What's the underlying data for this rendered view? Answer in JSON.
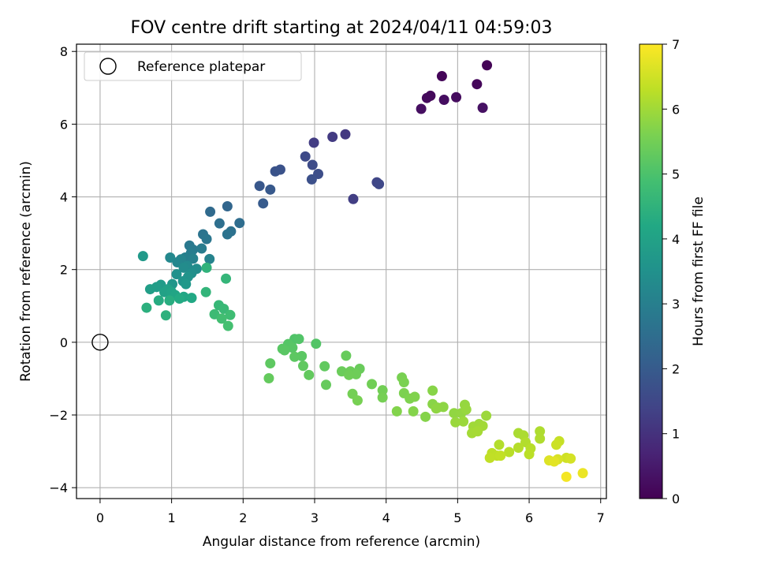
{
  "chart_data": {
    "type": "scatter",
    "title": "FOV centre drift starting at 2024/04/11 04:59:03",
    "xlabel": "Angular distance from reference (arcmin)",
    "ylabel": "Rotation from reference (arcmin)",
    "xlim": [
      -0.33,
      7.08
    ],
    "ylim": [
      -4.3,
      8.2
    ],
    "xticks": [
      0,
      1,
      2,
      3,
      4,
      5,
      6,
      7
    ],
    "yticks": [
      -4,
      -2,
      0,
      2,
      4,
      6,
      8
    ],
    "grid": true,
    "legend": {
      "placement": "upper-left",
      "entries": [
        "Reference platepar"
      ]
    },
    "reference_point": {
      "x": 0,
      "y": 0,
      "label": "Reference platepar"
    },
    "colorbar": {
      "label": "Hours from first FF file",
      "colormap": "viridis",
      "range": [
        0,
        7
      ],
      "ticks": [
        0,
        1,
        2,
        3,
        4,
        5,
        6,
        7
      ]
    },
    "points": [
      {
        "x": 5.41,
        "y": 7.62,
        "c": 0.05
      },
      {
        "x": 4.78,
        "y": 7.32,
        "c": 0.08
      },
      {
        "x": 5.27,
        "y": 7.1,
        "c": 0.12
      },
      {
        "x": 4.62,
        "y": 6.78,
        "c": 0.15
      },
      {
        "x": 4.57,
        "y": 6.72,
        "c": 0.18
      },
      {
        "x": 4.98,
        "y": 6.74,
        "c": 0.22
      },
      {
        "x": 4.81,
        "y": 6.67,
        "c": 0.25
      },
      {
        "x": 4.49,
        "y": 6.42,
        "c": 0.28
      },
      {
        "x": 5.35,
        "y": 6.45,
        "c": 0.32
      },
      {
        "x": 3.43,
        "y": 5.72,
        "c": 1.15
      },
      {
        "x": 3.25,
        "y": 5.65,
        "c": 1.2
      },
      {
        "x": 2.99,
        "y": 5.49,
        "c": 1.25
      },
      {
        "x": 3.54,
        "y": 3.94,
        "c": 1.3
      },
      {
        "x": 3.87,
        "y": 4.4,
        "c": 1.45
      },
      {
        "x": 3.9,
        "y": 4.35,
        "c": 1.5
      },
      {
        "x": 2.87,
        "y": 5.11,
        "c": 1.55
      },
      {
        "x": 2.97,
        "y": 4.88,
        "c": 1.6
      },
      {
        "x": 3.05,
        "y": 4.63,
        "c": 1.65
      },
      {
        "x": 2.96,
        "y": 4.48,
        "c": 1.7
      },
      {
        "x": 2.52,
        "y": 4.75,
        "c": 1.75
      },
      {
        "x": 2.45,
        "y": 4.7,
        "c": 1.8
      },
      {
        "x": 2.23,
        "y": 4.3,
        "c": 1.9
      },
      {
        "x": 2.38,
        "y": 4.2,
        "c": 1.95
      },
      {
        "x": 2.28,
        "y": 3.82,
        "c": 2.0
      },
      {
        "x": 1.78,
        "y": 3.74,
        "c": 2.3
      },
      {
        "x": 1.54,
        "y": 3.59,
        "c": 2.4
      },
      {
        "x": 1.95,
        "y": 3.28,
        "c": 2.5
      },
      {
        "x": 1.67,
        "y": 3.27,
        "c": 2.55
      },
      {
        "x": 1.83,
        "y": 3.05,
        "c": 2.6
      },
      {
        "x": 1.78,
        "y": 2.97,
        "c": 2.65
      },
      {
        "x": 1.44,
        "y": 2.97,
        "c": 2.7
      },
      {
        "x": 1.49,
        "y": 2.84,
        "c": 2.75
      },
      {
        "x": 1.25,
        "y": 2.66,
        "c": 2.8
      },
      {
        "x": 1.3,
        "y": 2.55,
        "c": 2.85
      },
      {
        "x": 1.42,
        "y": 2.58,
        "c": 2.9
      },
      {
        "x": 1.27,
        "y": 2.45,
        "c": 2.95
      },
      {
        "x": 1.19,
        "y": 2.33,
        "c": 3.0
      },
      {
        "x": 1.3,
        "y": 2.3,
        "c": 3.05
      },
      {
        "x": 1.53,
        "y": 2.29,
        "c": 3.1
      },
      {
        "x": 1.13,
        "y": 2.28,
        "c": 3.15
      },
      {
        "x": 1.08,
        "y": 2.2,
        "c": 3.2
      },
      {
        "x": 0.98,
        "y": 2.33,
        "c": 3.25
      },
      {
        "x": 1.22,
        "y": 2.1,
        "c": 3.3
      },
      {
        "x": 1.17,
        "y": 2.05,
        "c": 3.35
      },
      {
        "x": 1.35,
        "y": 2.02,
        "c": 3.4
      },
      {
        "x": 1.28,
        "y": 1.9,
        "c": 3.45
      },
      {
        "x": 1.07,
        "y": 1.87,
        "c": 3.5
      },
      {
        "x": 1.23,
        "y": 1.8,
        "c": 3.55
      },
      {
        "x": 1.16,
        "y": 1.68,
        "c": 3.6
      },
      {
        "x": 1.01,
        "y": 1.6,
        "c": 3.65
      },
      {
        "x": 1.2,
        "y": 1.6,
        "c": 3.7
      },
      {
        "x": 0.6,
        "y": 2.37,
        "c": 3.75
      },
      {
        "x": 0.85,
        "y": 1.58,
        "c": 3.8
      },
      {
        "x": 0.79,
        "y": 1.52,
        "c": 3.85
      },
      {
        "x": 0.7,
        "y": 1.46,
        "c": 3.9
      },
      {
        "x": 0.95,
        "y": 1.46,
        "c": 3.95
      },
      {
        "x": 0.9,
        "y": 1.38,
        "c": 4.0
      },
      {
        "x": 1.0,
        "y": 1.38,
        "c": 4.05
      },
      {
        "x": 1.05,
        "y": 1.3,
        "c": 4.1
      },
      {
        "x": 1.17,
        "y": 1.25,
        "c": 4.15
      },
      {
        "x": 1.28,
        "y": 1.22,
        "c": 4.2
      },
      {
        "x": 1.11,
        "y": 1.2,
        "c": 4.25
      },
      {
        "x": 0.82,
        "y": 1.15,
        "c": 4.3
      },
      {
        "x": 0.97,
        "y": 1.15,
        "c": 4.35
      },
      {
        "x": 0.65,
        "y": 0.95,
        "c": 4.4
      },
      {
        "x": 0.92,
        "y": 0.74,
        "c": 4.45
      },
      {
        "x": 1.49,
        "y": 2.05,
        "c": 4.5
      },
      {
        "x": 1.48,
        "y": 1.38,
        "c": 4.55
      },
      {
        "x": 1.76,
        "y": 1.75,
        "c": 4.6
      },
      {
        "x": 1.66,
        "y": 1.02,
        "c": 4.65
      },
      {
        "x": 1.73,
        "y": 0.92,
        "c": 4.7
      },
      {
        "x": 1.6,
        "y": 0.77,
        "c": 4.75
      },
      {
        "x": 1.82,
        "y": 0.75,
        "c": 4.8
      },
      {
        "x": 1.7,
        "y": 0.65,
        "c": 4.85
      },
      {
        "x": 1.79,
        "y": 0.45,
        "c": 4.9
      },
      {
        "x": 2.72,
        "y": 0.09,
        "c": 5.05
      },
      {
        "x": 2.78,
        "y": 0.09,
        "c": 5.08
      },
      {
        "x": 3.02,
        "y": -0.04,
        "c": 5.1
      },
      {
        "x": 2.63,
        "y": -0.05,
        "c": 5.12
      },
      {
        "x": 2.69,
        "y": -0.15,
        "c": 5.14
      },
      {
        "x": 2.55,
        "y": -0.18,
        "c": 5.16
      },
      {
        "x": 2.58,
        "y": -0.22,
        "c": 5.18
      },
      {
        "x": 2.82,
        "y": -0.38,
        "c": 5.2
      },
      {
        "x": 2.72,
        "y": -0.4,
        "c": 5.22
      },
      {
        "x": 2.38,
        "y": -0.58,
        "c": 5.24
      },
      {
        "x": 2.84,
        "y": -0.65,
        "c": 5.26
      },
      {
        "x": 3.14,
        "y": -0.66,
        "c": 5.28
      },
      {
        "x": 2.92,
        "y": -0.9,
        "c": 5.3
      },
      {
        "x": 2.36,
        "y": -0.99,
        "c": 5.32
      },
      {
        "x": 3.16,
        "y": -1.17,
        "c": 5.34
      },
      {
        "x": 3.44,
        "y": -0.37,
        "c": 5.36
      },
      {
        "x": 3.63,
        "y": -0.73,
        "c": 5.38
      },
      {
        "x": 3.38,
        "y": -0.8,
        "c": 5.4
      },
      {
        "x": 3.5,
        "y": -0.8,
        "c": 5.42
      },
      {
        "x": 3.58,
        "y": -0.88,
        "c": 5.44
      },
      {
        "x": 3.48,
        "y": -0.9,
        "c": 5.46
      },
      {
        "x": 3.8,
        "y": -1.15,
        "c": 5.48
      },
      {
        "x": 3.95,
        "y": -1.32,
        "c": 5.5
      },
      {
        "x": 3.53,
        "y": -1.42,
        "c": 5.52
      },
      {
        "x": 3.95,
        "y": -1.52,
        "c": 5.54
      },
      {
        "x": 3.6,
        "y": -1.6,
        "c": 5.56
      },
      {
        "x": 4.22,
        "y": -0.97,
        "c": 5.58
      },
      {
        "x": 4.25,
        "y": -1.1,
        "c": 5.6
      },
      {
        "x": 4.25,
        "y": -1.4,
        "c": 5.62
      },
      {
        "x": 4.33,
        "y": -1.55,
        "c": 5.64
      },
      {
        "x": 4.4,
        "y": -1.5,
        "c": 5.66
      },
      {
        "x": 4.15,
        "y": -1.9,
        "c": 5.68
      },
      {
        "x": 4.38,
        "y": -1.9,
        "c": 5.7
      },
      {
        "x": 4.55,
        "y": -2.05,
        "c": 5.72
      },
      {
        "x": 4.65,
        "y": -1.33,
        "c": 5.74
      },
      {
        "x": 4.65,
        "y": -1.7,
        "c": 5.76
      },
      {
        "x": 4.72,
        "y": -1.8,
        "c": 5.78
      },
      {
        "x": 4.8,
        "y": -1.78,
        "c": 5.8
      },
      {
        "x": 4.7,
        "y": -1.82,
        "c": 5.82
      },
      {
        "x": 4.95,
        "y": -1.95,
        "c": 5.84
      },
      {
        "x": 5.05,
        "y": -1.95,
        "c": 5.86
      },
      {
        "x": 5.1,
        "y": -1.72,
        "c": 5.88
      },
      {
        "x": 5.12,
        "y": -1.85,
        "c": 5.9
      },
      {
        "x": 4.97,
        "y": -2.2,
        "c": 5.92
      },
      {
        "x": 5.08,
        "y": -2.18,
        "c": 5.94
      },
      {
        "x": 5.4,
        "y": -2.02,
        "c": 5.96
      },
      {
        "x": 5.3,
        "y": -2.25,
        "c": 5.98
      },
      {
        "x": 5.22,
        "y": -2.32,
        "c": 6.0
      },
      {
        "x": 5.35,
        "y": -2.3,
        "c": 6.02
      },
      {
        "x": 5.2,
        "y": -2.5,
        "c": 6.04
      },
      {
        "x": 5.28,
        "y": -2.45,
        "c": 6.06
      },
      {
        "x": 5.85,
        "y": -2.5,
        "c": 6.1
      },
      {
        "x": 5.92,
        "y": -2.56,
        "c": 6.12
      },
      {
        "x": 6.15,
        "y": -2.45,
        "c": 6.14
      },
      {
        "x": 6.15,
        "y": -2.65,
        "c": 6.16
      },
      {
        "x": 5.95,
        "y": -2.75,
        "c": 6.18
      },
      {
        "x": 5.58,
        "y": -2.82,
        "c": 6.2
      },
      {
        "x": 5.85,
        "y": -2.9,
        "c": 6.22
      },
      {
        "x": 6.02,
        "y": -2.92,
        "c": 6.24
      },
      {
        "x": 5.72,
        "y": -3.02,
        "c": 6.26
      },
      {
        "x": 6.0,
        "y": -3.08,
        "c": 6.28
      },
      {
        "x": 5.48,
        "y": -3.05,
        "c": 6.3
      },
      {
        "x": 5.55,
        "y": -3.12,
        "c": 6.32
      },
      {
        "x": 5.45,
        "y": -3.18,
        "c": 6.34
      },
      {
        "x": 5.6,
        "y": -3.12,
        "c": 6.36
      },
      {
        "x": 6.42,
        "y": -2.72,
        "c": 6.4
      },
      {
        "x": 6.38,
        "y": -2.82,
        "c": 6.45
      },
      {
        "x": 6.52,
        "y": -3.18,
        "c": 6.5
      },
      {
        "x": 6.58,
        "y": -3.2,
        "c": 6.55
      },
      {
        "x": 6.4,
        "y": -3.22,
        "c": 6.6
      },
      {
        "x": 6.28,
        "y": -3.25,
        "c": 6.65
      },
      {
        "x": 6.35,
        "y": -3.28,
        "c": 6.7
      },
      {
        "x": 6.75,
        "y": -3.6,
        "c": 6.8
      },
      {
        "x": 6.52,
        "y": -3.7,
        "c": 6.9
      }
    ]
  }
}
